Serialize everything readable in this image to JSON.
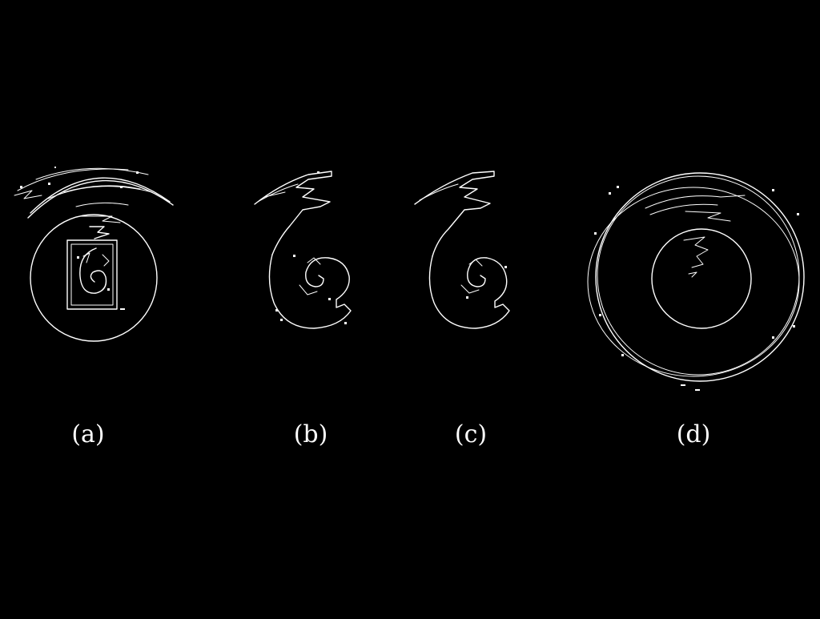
{
  "panels": [
    {
      "id": "a",
      "caption": "(a)"
    },
    {
      "id": "b",
      "caption": "(b)"
    },
    {
      "id": "c",
      "caption": "(c)"
    },
    {
      "id": "d",
      "caption": "(d)"
    }
  ]
}
